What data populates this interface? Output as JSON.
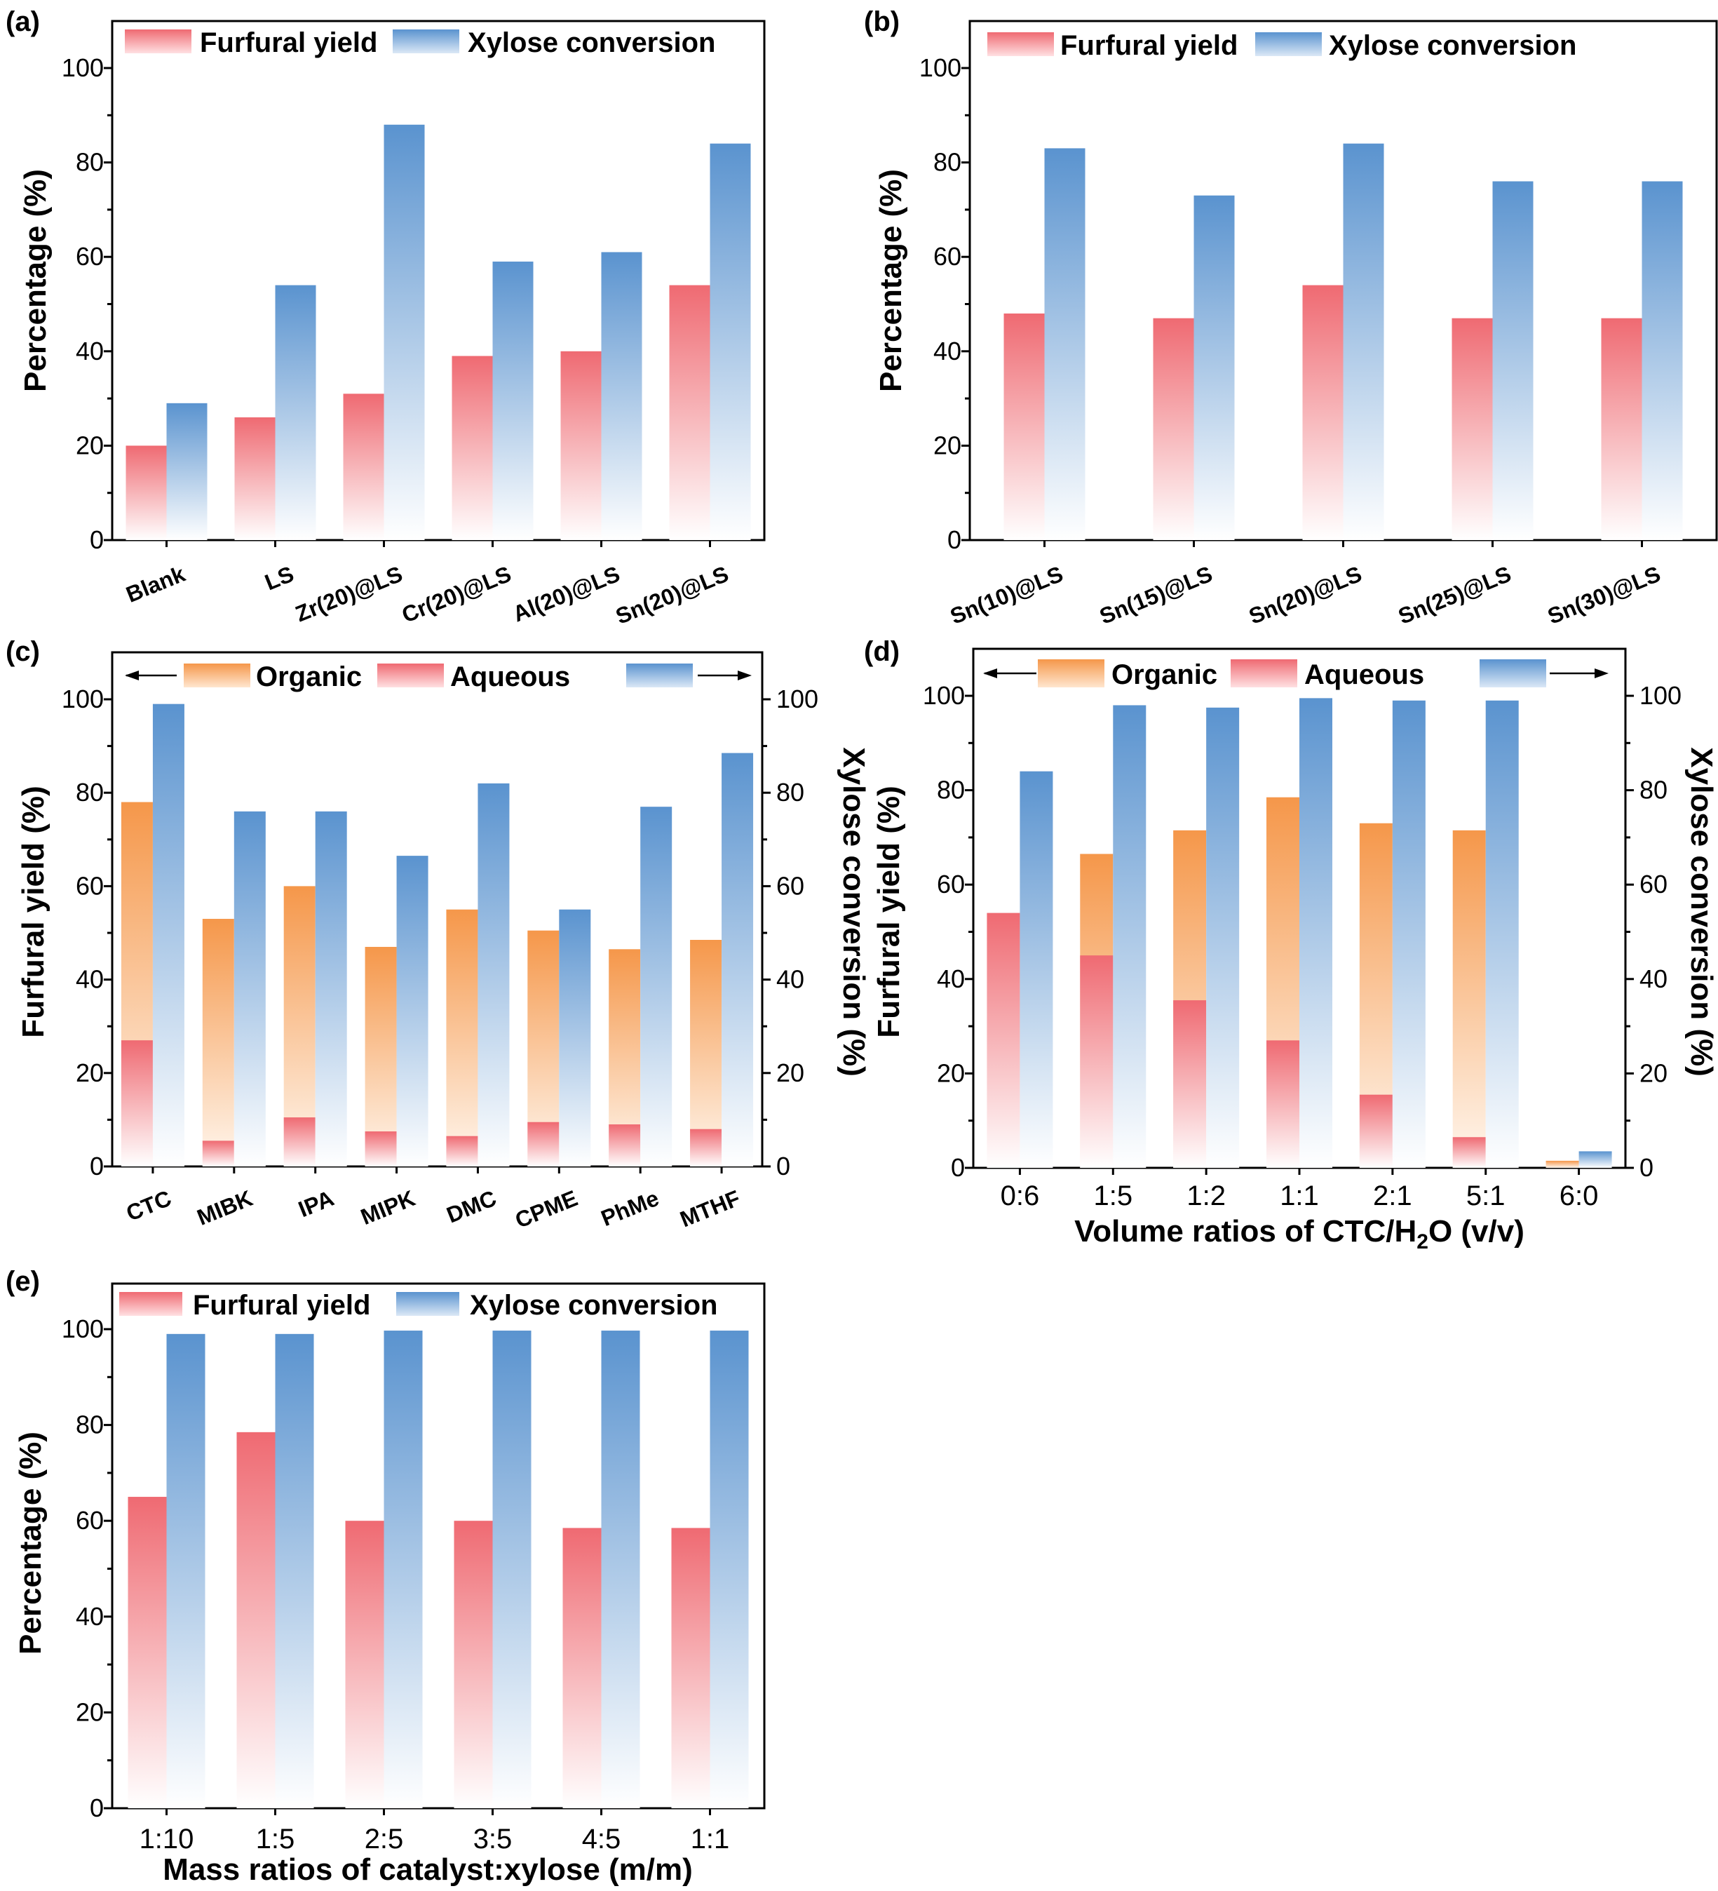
{
  "colors": {
    "red_top": "#ef6a72",
    "red_bottom": "#ffffff",
    "blue_top": "#5a93cf",
    "blue_bottom": "#ffffff",
    "orange_top": "#f5974a",
    "orange_bottom": "#fff7ef",
    "axis": "#000000"
  },
  "chart_data": [
    {
      "panel": "(a)",
      "type": "bar",
      "categories": [
        "Blank",
        "LS",
        "Zr(20)@LS",
        "Cr(20)@LS",
        "Al(20)@LS",
        "Sn(20)@LS"
      ],
      "series": [
        {
          "name": "Furfural yield",
          "color": "red",
          "values": [
            20,
            26,
            31,
            39,
            40,
            54
          ]
        },
        {
          "name": "Xylose conversion",
          "color": "blue",
          "values": [
            29,
            54,
            88,
            59,
            61,
            84
          ]
        }
      ],
      "ylabel": "Percentage (%)",
      "xlabel": "",
      "ylim": [
        0,
        110
      ],
      "yticks": [
        0,
        20,
        40,
        60,
        80,
        100
      ],
      "rotate_labels": true,
      "legend": "top"
    },
    {
      "panel": "(b)",
      "type": "bar",
      "categories": [
        "Sn(10)@LS",
        "Sn(15)@LS",
        "Sn(20)@LS",
        "Sn(25)@LS",
        "Sn(30)@LS"
      ],
      "series": [
        {
          "name": "Furfural yield",
          "color": "red",
          "values": [
            48,
            47,
            54,
            47,
            47
          ]
        },
        {
          "name": "Xylose conversion",
          "color": "blue",
          "values": [
            83,
            73,
            84,
            76,
            76
          ]
        }
      ],
      "ylabel": "Percentage (%)",
      "xlabel": "",
      "ylim": [
        0,
        110
      ],
      "yticks": [
        0,
        20,
        40,
        60,
        80,
        100
      ],
      "rotate_labels": true,
      "legend": "top"
    },
    {
      "panel": "(c)",
      "type": "bar",
      "categories": [
        "CTC",
        "MIBK",
        "IPA",
        "MIPK",
        "DMC",
        "CPME",
        "PhMe",
        "MTHF"
      ],
      "stacked_series": [
        {
          "name": "Aqueous",
          "color": "red",
          "values": [
            27,
            5.5,
            10.5,
            7.5,
            6.5,
            9.5,
            9,
            8
          ]
        },
        {
          "name": "Organic",
          "color": "orange",
          "values": [
            51,
            47.5,
            49.5,
            39.5,
            48.5,
            41,
            37.5,
            40.5
          ]
        }
      ],
      "series": [
        {
          "name": "Xylose conversion",
          "color": "blue",
          "values": [
            99,
            76,
            76,
            66.5,
            82,
            55,
            77,
            88.5
          ]
        }
      ],
      "legend_labels": [
        "Organic",
        "Aqueous",
        ""
      ],
      "ylabel": "Furfural yield (%)",
      "y2label": "Xylose conversion (%)",
      "xlabel": "",
      "ylim": [
        0,
        110
      ],
      "yticks": [
        0,
        20,
        40,
        60,
        80,
        100
      ],
      "rotate_labels": true,
      "legend": "top"
    },
    {
      "panel": "(d)",
      "type": "bar",
      "categories": [
        "0:6",
        "1:5",
        "1:2",
        "1:1",
        "2:1",
        "5:1",
        "6:0"
      ],
      "stacked_series": [
        {
          "name": "Aqueous",
          "color": "red",
          "values": [
            54,
            45,
            35.5,
            27,
            15.5,
            6.5,
            0
          ]
        },
        {
          "name": "Organic",
          "color": "orange",
          "values": [
            0,
            21.5,
            36,
            51.5,
            57.5,
            65,
            1.5
          ]
        }
      ],
      "series": [
        {
          "name": "Xylose conversion",
          "color": "blue",
          "values": [
            84,
            98,
            97.5,
            99.5,
            99,
            99,
            3.5
          ]
        }
      ],
      "legend_labels": [
        "Organic",
        "Aqueous",
        ""
      ],
      "ylabel": "Furfural yield (%)",
      "y2label": "Xylose conversion (%)",
      "xlabel": "Volume ratios of CTC/H",
      "xlabel_sub": "2",
      "xlabel_tail": "O (v/v)",
      "ylim": [
        0,
        110
      ],
      "yticks": [
        0,
        20,
        40,
        60,
        80,
        100
      ],
      "rotate_labels": false,
      "legend": "top"
    },
    {
      "panel": "(e)",
      "type": "bar",
      "categories": [
        "1:10",
        "1:5",
        "2:5",
        "3:5",
        "4:5",
        "1:1"
      ],
      "series": [
        {
          "name": "Furfural yield",
          "color": "red",
          "values": [
            65,
            78.5,
            60,
            60,
            58.5,
            58.5
          ]
        },
        {
          "name": "Xylose conversion",
          "color": "blue",
          "values": [
            99,
            99,
            99.7,
            99.7,
            99.7,
            99.7
          ]
        }
      ],
      "ylabel": "Percentage (%)",
      "xlabel": "Mass ratios of catalyst:xylose (m/m)",
      "ylim": [
        0,
        110
      ],
      "yticks": [
        0,
        20,
        40,
        60,
        80,
        100
      ],
      "rotate_labels": false,
      "legend": "top"
    }
  ]
}
